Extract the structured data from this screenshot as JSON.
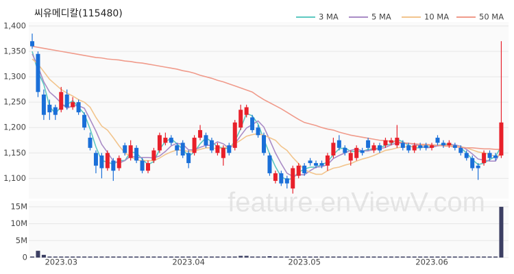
{
  "chart_data": {
    "type": "candlestick",
    "title": "씨유메디칼(115480)",
    "watermark": "feature.enViewV.com",
    "categories": [
      null,
      null,
      null,
      null,
      null,
      "2023.03",
      null,
      null,
      null,
      null,
      null,
      null,
      null,
      null,
      null,
      null,
      null,
      null,
      null,
      null,
      null,
      null,
      null,
      null,
      null,
      null,
      null,
      "2023.04",
      null,
      null,
      null,
      null,
      null,
      null,
      null,
      null,
      null,
      null,
      null,
      null,
      null,
      null,
      null,
      null,
      null,
      null,
      null,
      "2023.05",
      null,
      null,
      null,
      null,
      null,
      null,
      null,
      null,
      null,
      null,
      null,
      null,
      null,
      null,
      null,
      null,
      null,
      null,
      null,
      null,
      null,
      "2023.06",
      null,
      null,
      null,
      null,
      null,
      null,
      null,
      null,
      null,
      null,
      null,
      null
    ],
    "open": [
      1370,
      1345,
      1265,
      1245,
      1240,
      1235,
      1265,
      1240,
      1250,
      1225,
      1180,
      1150,
      1145,
      1120,
      1135,
      1120,
      1165,
      1140,
      1160,
      1135,
      1115,
      1135,
      1155,
      1170,
      1180,
      1165,
      1170,
      1150,
      1150,
      1180,
      1185,
      1175,
      1150,
      1140,
      1165,
      1160,
      1200,
      1225,
      1220,
      1200,
      1185,
      1145,
      1095,
      1110,
      1100,
      1080,
      1105,
      1125,
      1135,
      1130,
      1130,
      1125,
      1145,
      1175,
      1160,
      1135,
      1140,
      1155,
      1175,
      1155,
      1165,
      1165,
      1170,
      1165,
      1170,
      1165,
      1155,
      1165,
      1165,
      1160,
      1180,
      1170,
      1165,
      1165,
      1160,
      1150,
      1140,
      1125,
      1130,
      1150,
      1145,
      1145
    ],
    "high": [
      1385,
      1350,
      1275,
      1255,
      1245,
      1280,
      1275,
      1260,
      1255,
      1230,
      1190,
      1155,
      1150,
      1155,
      1140,
      1145,
      1170,
      1175,
      1165,
      1140,
      1135,
      1160,
      1190,
      1190,
      1185,
      1170,
      1175,
      1155,
      1185,
      1205,
      1190,
      1180,
      1170,
      1165,
      1170,
      1215,
      1245,
      1245,
      1225,
      1205,
      1190,
      1150,
      1115,
      1115,
      1105,
      1125,
      1130,
      1130,
      1140,
      1135,
      1135,
      1150,
      1180,
      1185,
      1165,
      1155,
      1165,
      1160,
      1180,
      1170,
      1170,
      1180,
      1180,
      1205,
      1175,
      1170,
      1170,
      1170,
      1170,
      1170,
      1185,
      1175,
      1175,
      1170,
      1165,
      1155,
      1145,
      1130,
      1155,
      1155,
      1150,
      1370
    ],
    "low": [
      1355,
      1260,
      1215,
      1215,
      1215,
      1230,
      1235,
      1235,
      1225,
      1195,
      1155,
      1110,
      1100,
      1115,
      1095,
      1115,
      1145,
      1135,
      1130,
      1110,
      1110,
      1130,
      1150,
      1165,
      1165,
      1145,
      1140,
      1120,
      1145,
      1175,
      1160,
      1150,
      1145,
      1125,
      1145,
      1155,
      1195,
      1220,
      1190,
      1180,
      1145,
      1105,
      1090,
      1085,
      1080,
      1070,
      1100,
      1105,
      1125,
      1120,
      1120,
      1115,
      1140,
      1155,
      1145,
      1125,
      1135,
      1145,
      1155,
      1150,
      1150,
      1160,
      1165,
      1160,
      1155,
      1150,
      1150,
      1155,
      1155,
      1155,
      1165,
      1160,
      1160,
      1155,
      1145,
      1135,
      1115,
      1097,
      1125,
      1135,
      1135,
      1140
    ],
    "close": [
      1360,
      1270,
      1225,
      1230,
      1225,
      1270,
      1240,
      1250,
      1230,
      1200,
      1160,
      1125,
      1120,
      1150,
      1115,
      1140,
      1150,
      1165,
      1135,
      1115,
      1130,
      1155,
      1185,
      1180,
      1170,
      1155,
      1145,
      1130,
      1180,
      1195,
      1165,
      1155,
      1165,
      1160,
      1150,
      1210,
      1235,
      1240,
      1195,
      1185,
      1150,
      1110,
      1110,
      1090,
      1090,
      1120,
      1125,
      1110,
      1130,
      1125,
      1125,
      1145,
      1170,
      1160,
      1150,
      1150,
      1160,
      1150,
      1160,
      1165,
      1155,
      1175,
      1175,
      1180,
      1160,
      1155,
      1165,
      1160,
      1160,
      1165,
      1170,
      1165,
      1170,
      1160,
      1150,
      1140,
      1120,
      1120,
      1150,
      1140,
      1140,
      1210
    ],
    "up_color": "#e8202a",
    "down_color": "#1a6fd8",
    "series": [
      {
        "name": "3 MA",
        "color": "#5cc8c0",
        "values": [
          1350,
          1310,
          1285,
          1242,
          1227,
          1242,
          1245,
          1253,
          1240,
          1227,
          1197,
          1162,
          1135,
          1132,
          1128,
          1135,
          1135,
          1152,
          1150,
          1138,
          1127,
          1133,
          1157,
          1173,
          1178,
          1168,
          1157,
          1143,
          1152,
          1168,
          1180,
          1172,
          1162,
          1160,
          1158,
          1173,
          1198,
          1228,
          1223,
          1207,
          1177,
          1148,
          1123,
          1103,
          1097,
          1100,
          1112,
          1118,
          1122,
          1122,
          1127,
          1132,
          1147,
          1158,
          1160,
          1153,
          1153,
          1153,
          1157,
          1158,
          1160,
          1165,
          1168,
          1177,
          1172,
          1165,
          1160,
          1160,
          1162,
          1162,
          1165,
          1167,
          1168,
          1165,
          1160,
          1150,
          1137,
          1127,
          1130,
          1137,
          1143,
          1163
        ]
      },
      {
        "name": "5 MA",
        "color": "#a98bc6",
        "values": [
          1345,
          1320,
          1290,
          1270,
          1260,
          1248,
          1238,
          1243,
          1243,
          1238,
          1216,
          1193,
          1167,
          1151,
          1134,
          1130,
          1135,
          1144,
          1141,
          1141,
          1141,
          1140,
          1144,
          1153,
          1164,
          1169,
          1167,
          1156,
          1156,
          1161,
          1165,
          1165,
          1172,
          1168,
          1159,
          1168,
          1184,
          1199,
          1206,
          1213,
          1201,
          1176,
          1150,
          1129,
          1110,
          1104,
          1107,
          1107,
          1115,
          1122,
          1123,
          1127,
          1139,
          1145,
          1150,
          1155,
          1158,
          1154,
          1154,
          1157,
          1158,
          1161,
          1166,
          1170,
          1169,
          1169,
          1167,
          1164,
          1160,
          1161,
          1164,
          1165,
          1166,
          1166,
          1163,
          1157,
          1148,
          1138,
          1136,
          1134,
          1134,
          1154
        ]
      },
      {
        "name": "10 MA",
        "color": "#f2c48c",
        "values": [
          1335,
          1325,
          1310,
          1295,
          1285,
          1275,
          1268,
          1262,
          1255,
          1250,
          1240,
          1220,
          1203,
          1195,
          1180,
          1164,
          1150,
          1143,
          1136,
          1135,
          1135,
          1135,
          1140,
          1147,
          1152,
          1156,
          1155,
          1153,
          1154,
          1157,
          1160,
          1160,
          1158,
          1160,
          1162,
          1168,
          1175,
          1183,
          1186,
          1188,
          1185,
          1180,
          1175,
          1163,
          1155,
          1141,
          1129,
          1117,
          1112,
          1108,
          1108,
          1115,
          1120,
          1122,
          1126,
          1129,
          1134,
          1138,
          1141,
          1145,
          1150,
          1155,
          1157,
          1160,
          1162,
          1162,
          1163,
          1165,
          1165,
          1165,
          1165,
          1165,
          1165,
          1164,
          1162,
          1160,
          1156,
          1152,
          1150,
          1147,
          1143,
          1146
        ]
      },
      {
        "name": "50 MA",
        "color": "#f09a8a",
        "values": [
          1360,
          1358,
          1356,
          1354,
          1352,
          1350,
          1348,
          1346,
          1344,
          1342,
          1340,
          1338,
          1337,
          1335,
          1334,
          1333,
          1331,
          1330,
          1328,
          1327,
          1325,
          1323,
          1321,
          1319,
          1317,
          1315,
          1312,
          1310,
          1307,
          1303,
          1300,
          1297,
          1293,
          1290,
          1286,
          1282,
          1278,
          1274,
          1270,
          1262,
          1255,
          1249,
          1243,
          1237,
          1230,
          1223,
          1216,
          1210,
          1207,
          1204,
          1200,
          1197,
          1195,
          1191,
          1188,
          1185,
          1183,
          1181,
          1179,
          1177,
          1175,
          1174,
          1173,
          1172,
          1170,
          1169,
          1168,
          1167,
          1167,
          1166,
          1165,
          1164,
          1163,
          1162,
          1161,
          1160,
          1160,
          1159,
          1158,
          1158,
          1157,
          1157
        ]
      }
    ],
    "ylim": [
      1060,
      1408
    ],
    "yticks": [
      {
        "value": 1100,
        "label": "1,100"
      },
      {
        "value": 1150,
        "label": "1,150"
      },
      {
        "value": 1200,
        "label": "1,200"
      },
      {
        "value": 1250,
        "label": "1,250"
      },
      {
        "value": 1300,
        "label": "1,300"
      },
      {
        "value": 1350,
        "label": "1,350"
      },
      {
        "value": 1400,
        "label": "1,400"
      }
    ],
    "grid": true,
    "volume": {
      "color": "#3c3f63",
      "values": [
        300000,
        2000000,
        800000,
        300000,
        300000,
        300000,
        300000,
        300000,
        300000,
        300000,
        300000,
        300000,
        300000,
        300000,
        300000,
        300000,
        300000,
        300000,
        300000,
        300000,
        300000,
        300000,
        300000,
        300000,
        300000,
        300000,
        300000,
        300000,
        300000,
        300000,
        300000,
        300000,
        300000,
        300000,
        300000,
        300000,
        500000,
        500000,
        300000,
        300000,
        300000,
        400000,
        300000,
        300000,
        300000,
        300000,
        300000,
        300000,
        300000,
        300000,
        300000,
        300000,
        300000,
        300000,
        300000,
        300000,
        300000,
        300000,
        300000,
        300000,
        300000,
        300000,
        300000,
        300000,
        300000,
        300000,
        300000,
        300000,
        300000,
        300000,
        300000,
        300000,
        300000,
        300000,
        300000,
        300000,
        300000,
        300000,
        300000,
        300000,
        300000,
        15000000
      ],
      "ylim": [
        0,
        16800000
      ],
      "yticks": [
        {
          "value": 15000000,
          "label": "15M"
        },
        {
          "value": 10000000,
          "label": "10M"
        },
        {
          "value": 5000000,
          "label": "5M"
        },
        0
      ]
    }
  }
}
